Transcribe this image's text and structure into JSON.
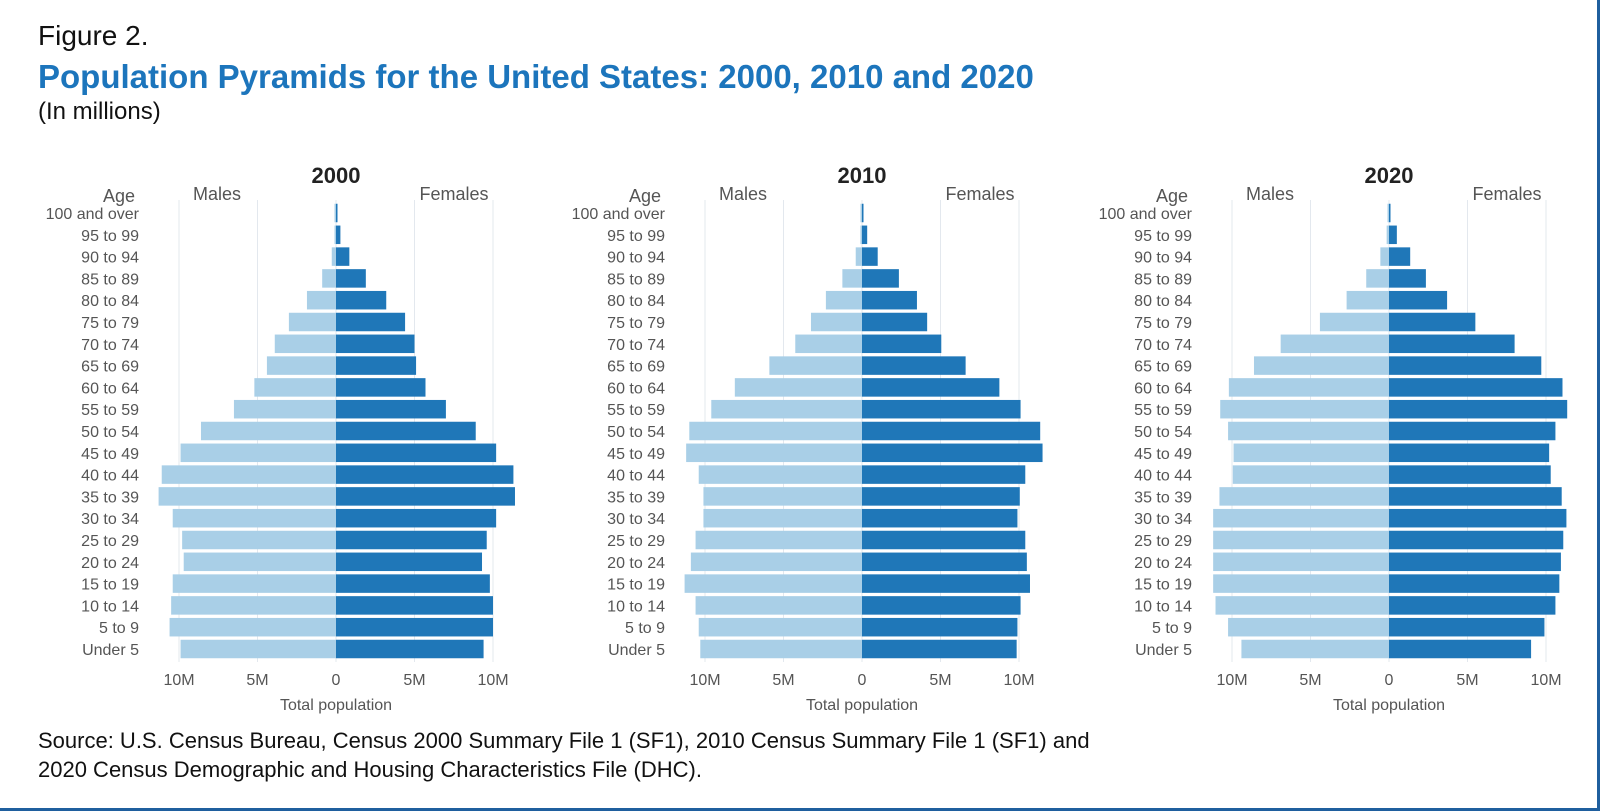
{
  "header": {
    "figure_label": "Figure 2.",
    "title": "Population Pyramids for the United States: 2000, 2010 and 2020",
    "subtitle": "(In millions)"
  },
  "source": {
    "line1": "Source: U.S. Census Bureau, Census 2000 Summary File 1 (SF1), 2010 Census Summary File 1 (SF1) and",
    "line2": "2020 Census Demographic and Housing Characteristics File (DHC)."
  },
  "colors": {
    "male": "#a9cfe7",
    "female": "#1f77b8",
    "grid": "#e3e8ee",
    "axis_text": "#555555",
    "title": "#1c75bc"
  },
  "labels": {
    "age": "Age",
    "males": "Males",
    "females": "Females",
    "xlabel": "Total population",
    "ticks": [
      "10M",
      "5M",
      "0",
      "5M",
      "10M"
    ]
  },
  "chart_data": [
    {
      "type": "bar",
      "title": "2000",
      "xlabel": "Total population",
      "ylabel": "Age",
      "xlim": [
        -10,
        10
      ],
      "x_tick_values": [
        -10,
        -5,
        0,
        5,
        10
      ],
      "x_tick_labels": [
        "10M",
        "5M",
        "0",
        "5M",
        "10M"
      ],
      "categories": [
        "100 and over",
        "95 to 99",
        "90 to 94",
        "85 to 89",
        "80 to 84",
        "75 to 79",
        "70 to 74",
        "65 to 69",
        "60 to 64",
        "55 to 59",
        "50 to 54",
        "45 to 49",
        "40 to 44",
        "35 to 39",
        "30 to 34",
        "25 to 29",
        "20 to 24",
        "15 to 19",
        "10 to 14",
        "5 to 9",
        "Under 5"
      ],
      "series": [
        {
          "name": "Males",
          "values": [
            0.01,
            0.07,
            0.27,
            0.88,
            1.85,
            3.0,
            3.9,
            4.4,
            5.2,
            6.5,
            8.6,
            9.9,
            11.1,
            11.3,
            10.4,
            9.8,
            9.7,
            10.4,
            10.5,
            10.6,
            9.9
          ]
        },
        {
          "name": "Females",
          "values": [
            0.04,
            0.28,
            0.85,
            1.9,
            3.2,
            4.4,
            5.0,
            5.1,
            5.7,
            7.0,
            8.9,
            10.2,
            11.3,
            11.4,
            10.2,
            9.6,
            9.3,
            9.8,
            10.0,
            10.0,
            9.4
          ]
        }
      ]
    },
    {
      "type": "bar",
      "title": "2010",
      "xlabel": "Total population",
      "ylabel": "Age",
      "xlim": [
        -10,
        10
      ],
      "x_tick_values": [
        -10,
        -5,
        0,
        5,
        10
      ],
      "x_tick_labels": [
        "10M",
        "5M",
        "0",
        "5M",
        "10M"
      ],
      "categories": [
        "100 and over",
        "95 to 99",
        "90 to 94",
        "85 to 89",
        "80 to 84",
        "75 to 79",
        "70 to 74",
        "65 to 69",
        "60 to 64",
        "55 to 59",
        "50 to 54",
        "45 to 49",
        "40 to 44",
        "35 to 39",
        "30 to 34",
        "25 to 29",
        "20 to 24",
        "15 to 19",
        "10 to 14",
        "5 to 9",
        "Under 5"
      ],
      "series": [
        {
          "name": "Males",
          "values": [
            0.01,
            0.1,
            0.4,
            1.25,
            2.3,
            3.25,
            4.25,
            5.9,
            8.1,
            9.6,
            11.0,
            11.2,
            10.4,
            10.1,
            10.1,
            10.6,
            10.9,
            11.3,
            10.6,
            10.4,
            10.3
          ]
        },
        {
          "name": "Females",
          "values": [
            0.05,
            0.33,
            1.0,
            2.35,
            3.5,
            4.15,
            5.05,
            6.6,
            8.75,
            10.1,
            11.35,
            11.5,
            10.4,
            10.05,
            9.9,
            10.4,
            10.5,
            10.7,
            10.1,
            9.9,
            9.85
          ]
        }
      ]
    },
    {
      "type": "bar",
      "title": "2020",
      "xlabel": "Total population",
      "ylabel": "Age",
      "xlim": [
        -10,
        10
      ],
      "x_tick_values": [
        -10,
        -5,
        0,
        5,
        10
      ],
      "x_tick_labels": [
        "10M",
        "5M",
        "0",
        "5M",
        "10M"
      ],
      "categories": [
        "100 and over",
        "95 to 99",
        "90 to 94",
        "85 to 89",
        "80 to 84",
        "75 to 79",
        "70 to 74",
        "65 to 69",
        "60 to 64",
        "55 to 59",
        "50 to 54",
        "45 to 49",
        "40 to 44",
        "35 to 39",
        "30 to 34",
        "25 to 29",
        "20 to 24",
        "15 to 19",
        "10 to 14",
        "5 to 9",
        "Under 5"
      ],
      "series": [
        {
          "name": "Males",
          "values": [
            0.02,
            0.15,
            0.55,
            1.45,
            2.7,
            4.4,
            6.9,
            8.6,
            10.2,
            10.75,
            10.25,
            9.9,
            9.95,
            10.8,
            11.2,
            11.2,
            11.2,
            11.2,
            11.05,
            10.25,
            9.4
          ]
        },
        {
          "name": "Females",
          "values": [
            0.07,
            0.5,
            1.35,
            2.35,
            3.7,
            5.5,
            8.0,
            9.7,
            11.05,
            11.35,
            10.6,
            10.2,
            10.3,
            11.0,
            11.3,
            11.1,
            10.95,
            10.85,
            10.6,
            9.9,
            9.05
          ]
        }
      ]
    }
  ]
}
